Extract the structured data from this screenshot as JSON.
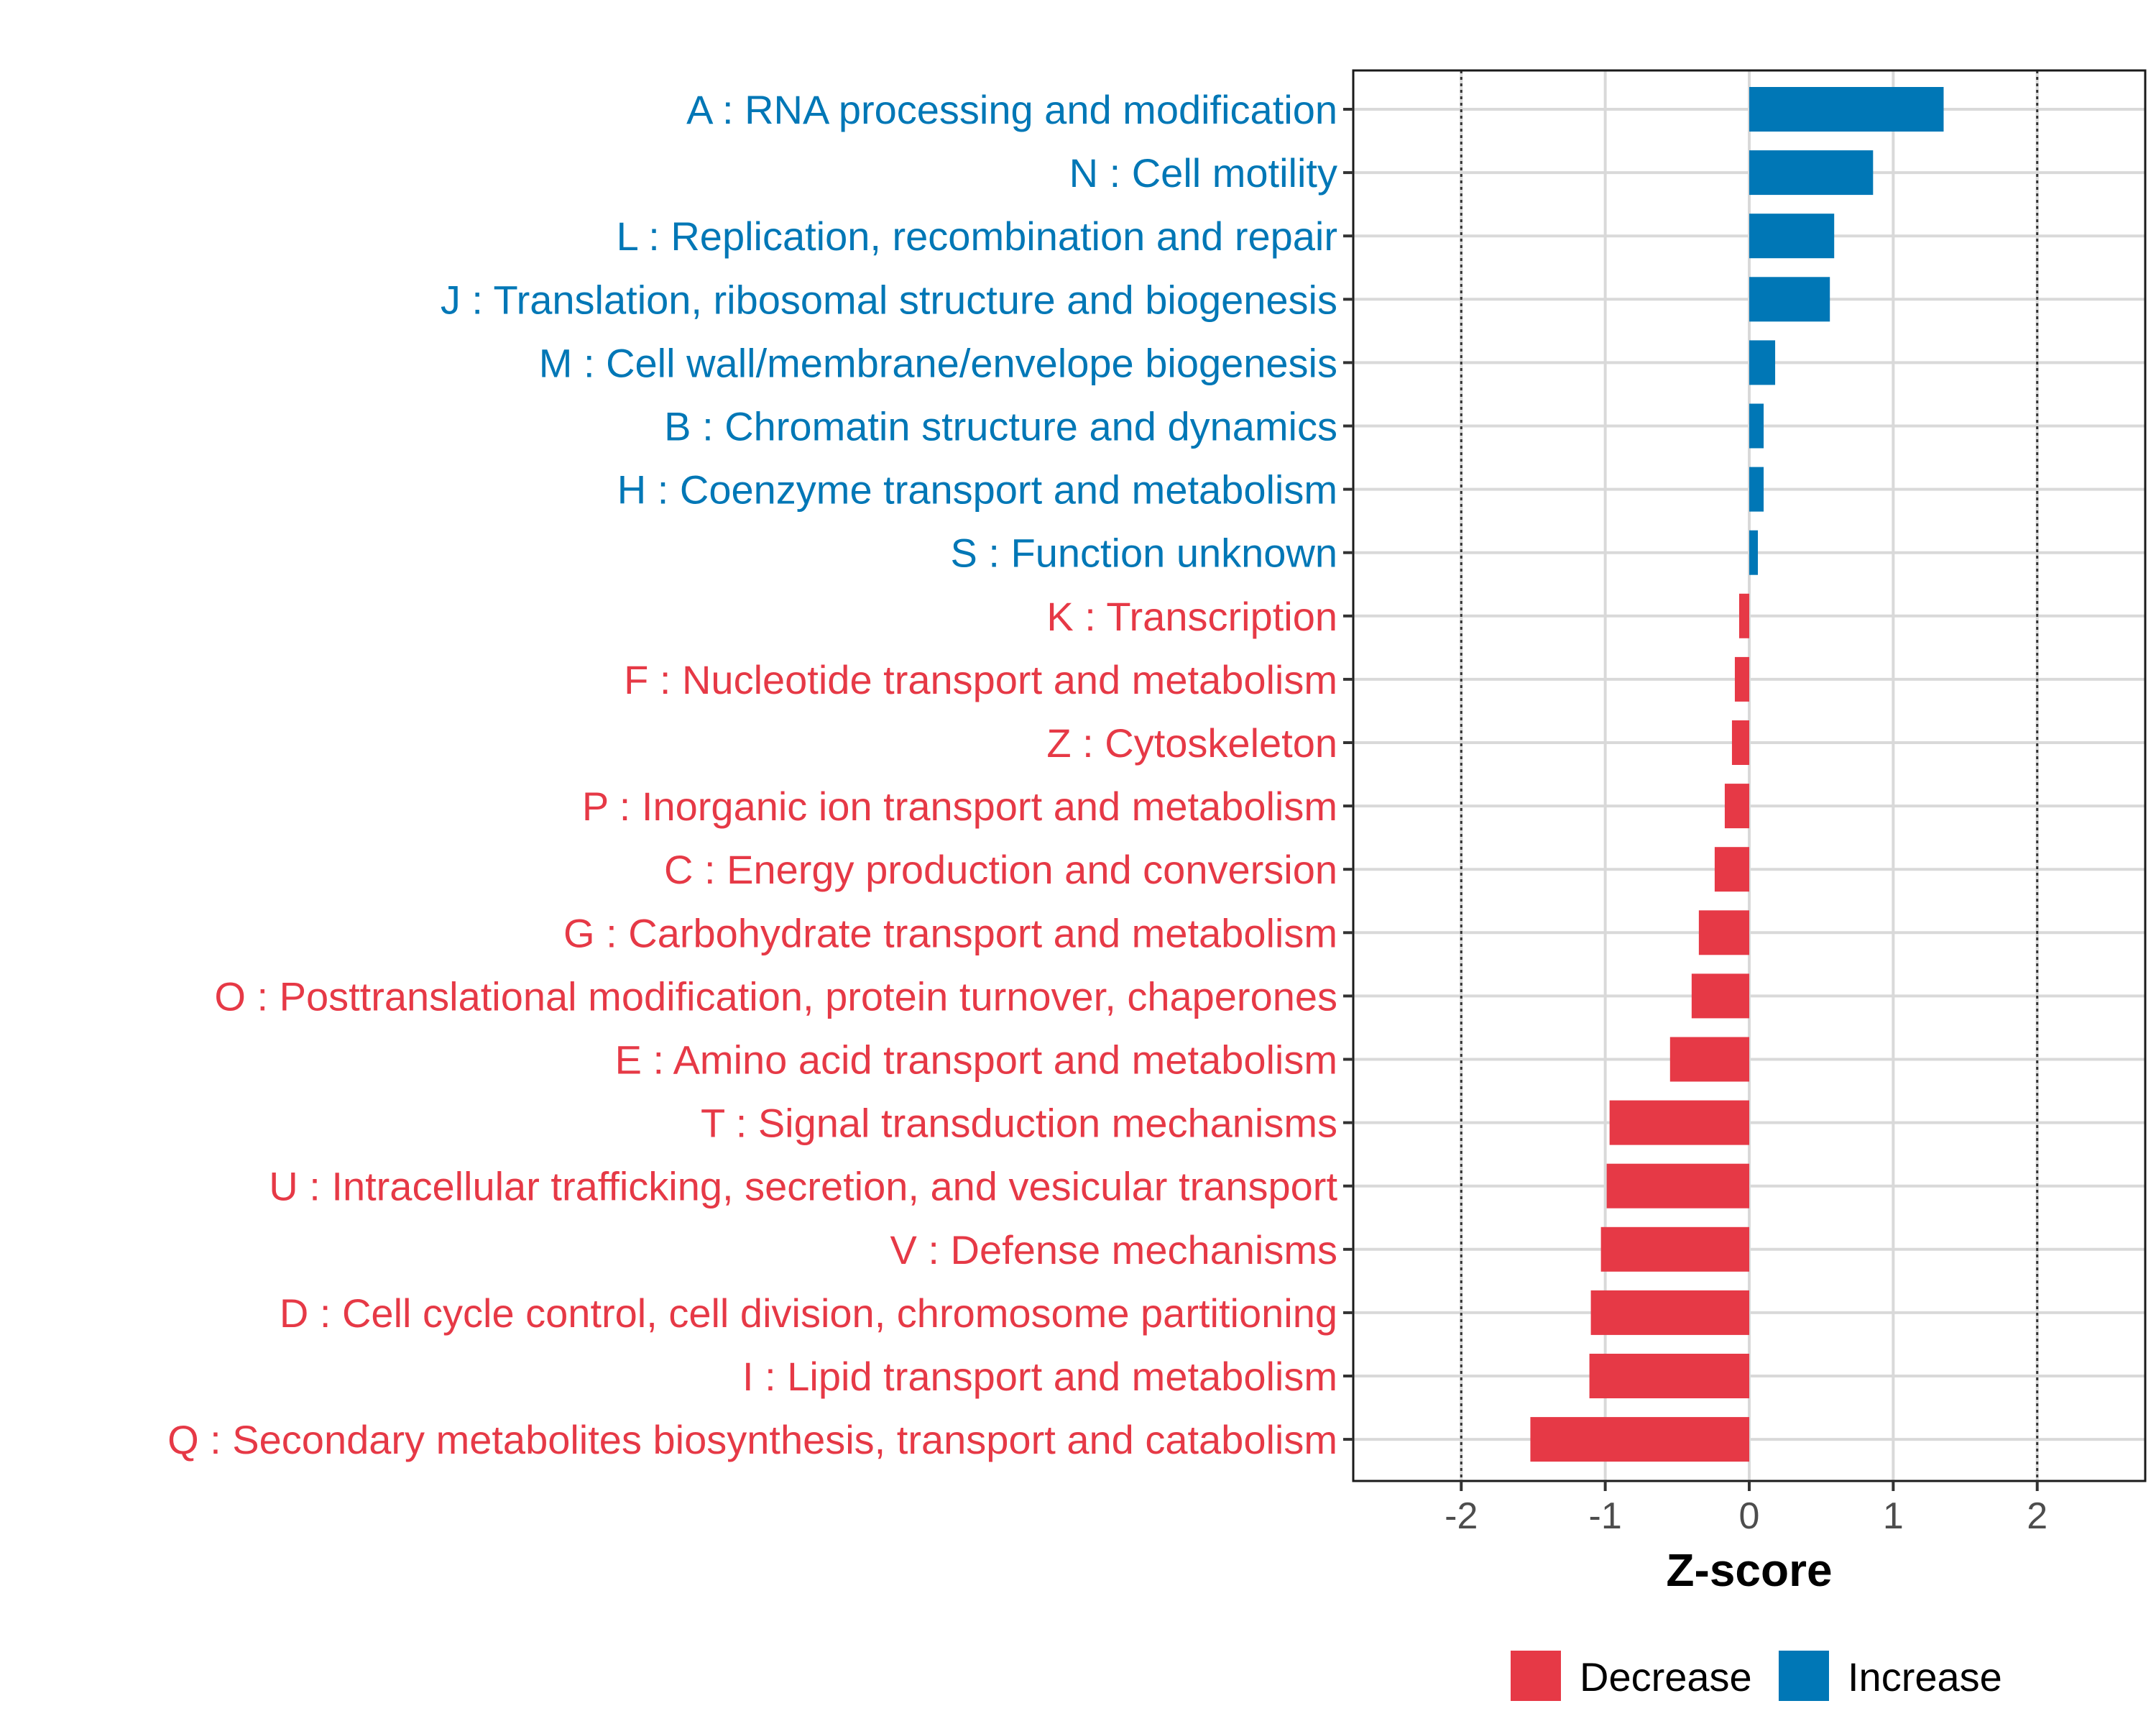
{
  "chart_data": {
    "type": "bar",
    "orientation": "horizontal",
    "xlabel": "Z-score",
    "ylabel": "",
    "xlim": [
      -2.75,
      2.75
    ],
    "xticks": [
      -2,
      -1,
      0,
      1,
      2
    ],
    "xtick_labels": [
      "-2",
      "-1",
      "0",
      "1",
      "2"
    ],
    "reference_lines": [
      -2,
      2
    ],
    "grid": true,
    "legend_position": "bottom",
    "legend": [
      {
        "label": "Decrease",
        "color": "#E63946"
      },
      {
        "label": "Increase",
        "color": "#0077B6"
      }
    ],
    "categories": [
      "A : RNA processing and modification",
      "N : Cell motility",
      "L : Replication, recombination and repair",
      "J : Translation, ribosomal structure and biogenesis",
      "M : Cell wall/membrane/envelope biogenesis",
      "B : Chromatin structure and dynamics",
      "H : Coenzyme transport and metabolism",
      "S : Function unknown",
      "K : Transcription",
      "F : Nucleotide transport and metabolism",
      "Z : Cytoskeleton",
      "P : Inorganic ion transport and metabolism",
      "C : Energy production and conversion",
      "G : Carbohydrate transport and metabolism",
      "O : Posttranslational modification, protein turnover, chaperones",
      "E : Amino acid transport and metabolism",
      "T : Signal transduction mechanisms",
      "U : Intracellular trafficking, secretion, and vesicular transport",
      "V : Defense mechanisms",
      "D : Cell cycle control, cell division, chromosome partitioning",
      "I : Lipid transport and metabolism",
      "Q : Secondary metabolites biosynthesis, transport and catabolism"
    ],
    "values": [
      1.35,
      0.86,
      0.59,
      0.56,
      0.18,
      0.1,
      0.1,
      0.06,
      -0.07,
      -0.1,
      -0.12,
      -0.17,
      -0.24,
      -0.35,
      -0.4,
      -0.55,
      -0.97,
      -0.99,
      -1.03,
      -1.1,
      -1.11,
      -1.52
    ]
  }
}
